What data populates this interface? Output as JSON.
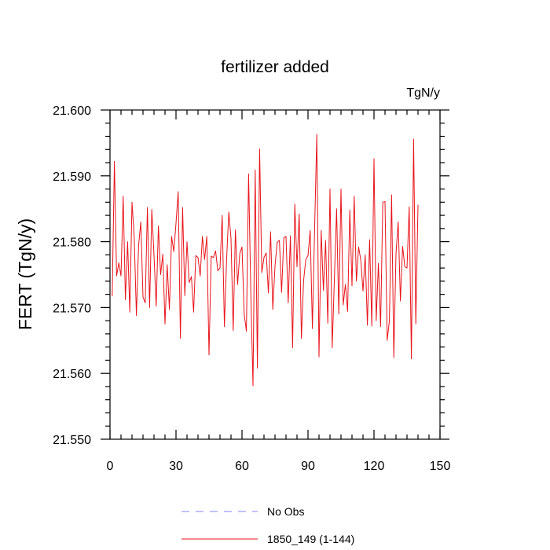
{
  "chart_data": {
    "type": "line",
    "title": "fertilizer added",
    "units_label": "TgN/y",
    "xlabel": "",
    "ylabel": "FERT  (TgN/y)",
    "xlim": [
      0,
      150
    ],
    "ylim": [
      21.55,
      21.6
    ],
    "x_ticks": [
      0,
      30,
      60,
      90,
      120,
      150
    ],
    "x_tick_labels": [
      "0",
      "30",
      "60",
      "90",
      "120",
      "150"
    ],
    "y_ticks": [
      21.55,
      21.56,
      21.57,
      21.58,
      21.59,
      21.6
    ],
    "y_tick_labels": [
      "21.550",
      "21.560",
      "21.570",
      "21.580",
      "21.590",
      "21.600"
    ],
    "grid": false,
    "legend_position": "bottom",
    "legend": [
      {
        "name": "No Obs",
        "color": "#8080ff",
        "style": "dashed"
      },
      {
        "name": "1850_149 (1-144)",
        "color": "#e8141b",
        "style": "solid"
      }
    ],
    "x_start": 1,
    "series": [
      {
        "name": "1850_149 (1-144)",
        "color": "#e8141b",
        "values": [
          21.5717,
          21.5922,
          21.5748,
          21.5768,
          21.5748,
          21.5869,
          21.5712,
          21.58,
          21.5693,
          21.586,
          21.5808,
          21.5688,
          21.5794,
          21.583,
          21.5716,
          21.5707,
          21.5852,
          21.57,
          21.5849,
          21.5779,
          21.5702,
          21.5824,
          21.575,
          21.5781,
          21.5675,
          21.5765,
          21.5697,
          21.5808,
          21.5785,
          21.5828,
          21.5876,
          21.5653,
          21.5852,
          21.5718,
          21.58,
          21.5738,
          21.5747,
          21.5693,
          21.5779,
          21.5776,
          21.5748,
          21.5808,
          21.5773,
          21.5808,
          21.5628,
          21.5778,
          21.5776,
          21.5786,
          21.5756,
          21.576,
          21.584,
          21.5671,
          21.5773,
          21.5845,
          21.5805,
          21.5665,
          21.5818,
          21.5735,
          21.5782,
          21.5792,
          21.569,
          21.5664,
          21.5903,
          21.5723,
          21.5581,
          21.5909,
          21.5608,
          21.5941,
          21.5753,
          21.5776,
          21.5783,
          21.5722,
          21.5815,
          21.5697,
          21.5763,
          21.5799,
          21.5802,
          21.5723,
          21.5806,
          21.5808,
          21.5707,
          21.5809,
          21.5639,
          21.5857,
          21.5762,
          21.5842,
          21.5653,
          21.5741,
          21.5773,
          21.5779,
          21.5817,
          21.5668,
          21.5818,
          21.5963,
          21.5625,
          21.5817,
          21.5726,
          21.5802,
          21.5676,
          21.588,
          21.5639,
          21.5744,
          21.585,
          21.569,
          21.588,
          21.5704,
          21.5735,
          21.5694,
          21.5848,
          21.5733,
          21.5869,
          21.574,
          21.5792,
          21.5772,
          21.5725,
          21.578,
          21.5673,
          21.5803,
          21.5672,
          21.5926,
          21.568,
          21.5767,
          21.5671,
          21.586,
          21.5861,
          21.565,
          21.568,
          21.5871,
          21.5624,
          21.5782,
          21.583,
          21.571,
          21.5793,
          21.5762,
          21.576,
          21.5853,
          21.5622,
          21.5956,
          21.5675,
          21.5856
        ]
      }
    ]
  }
}
